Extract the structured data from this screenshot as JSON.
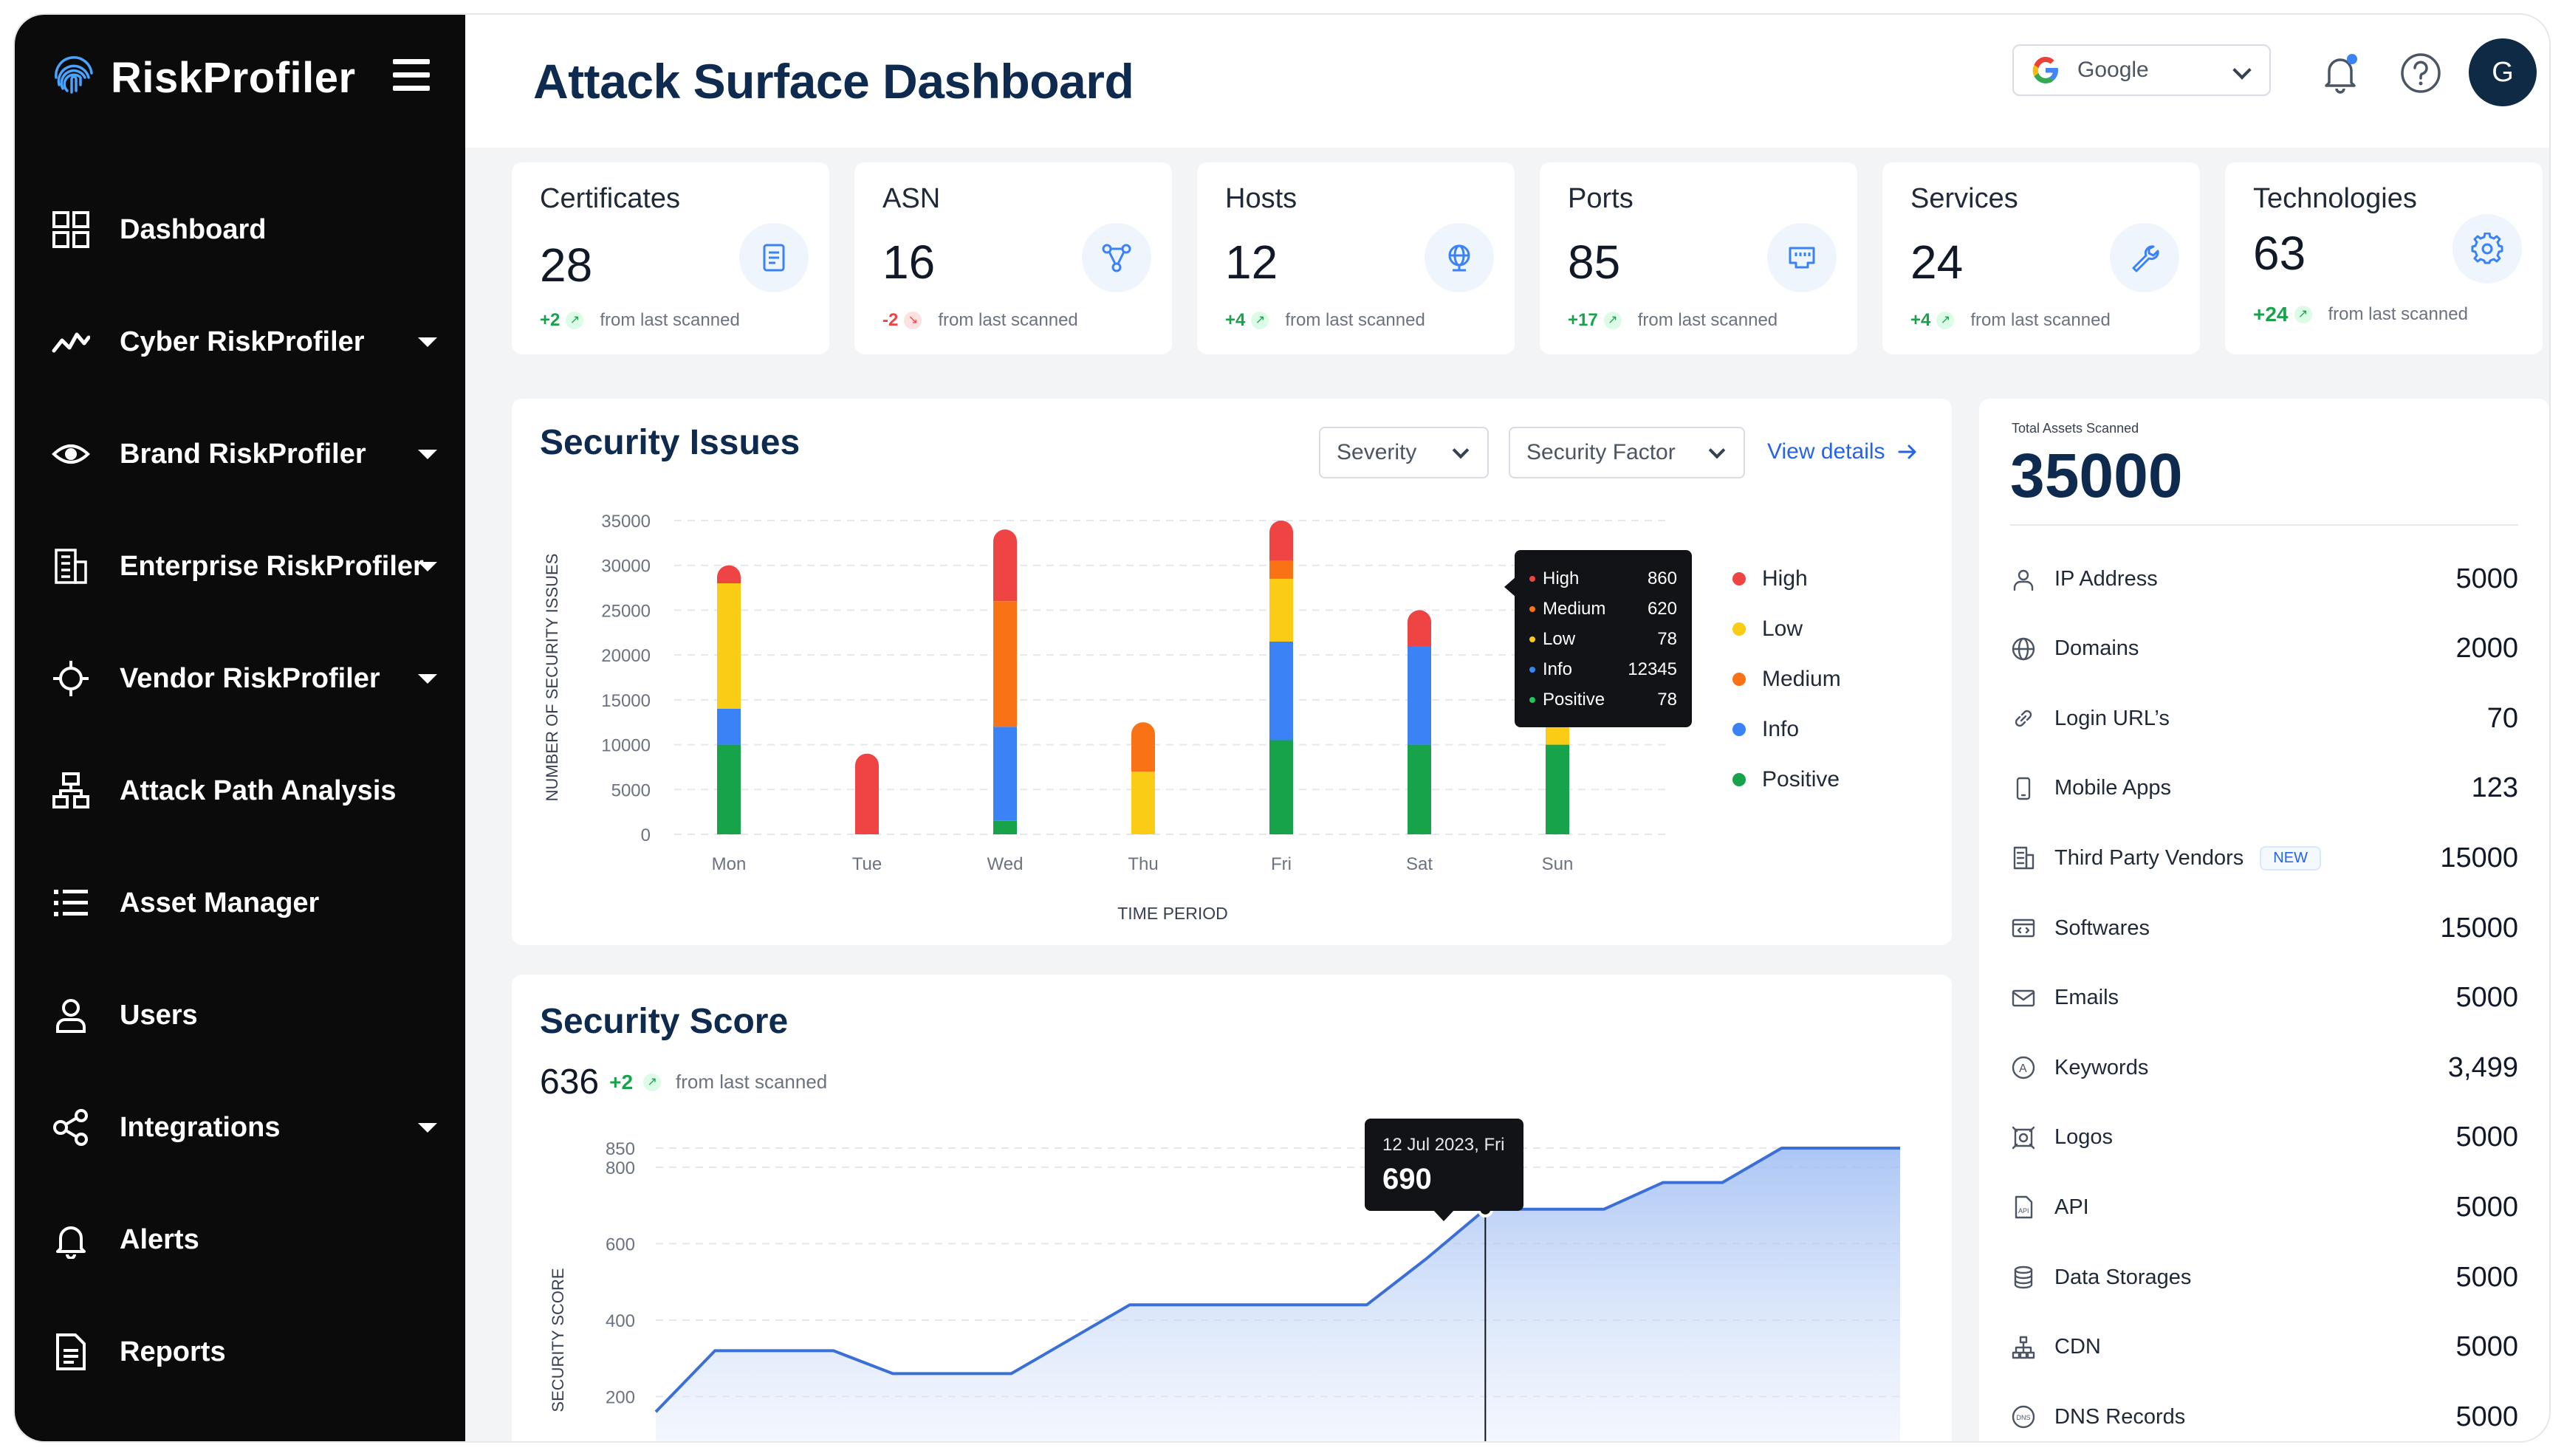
{
  "app": {
    "name": "RiskProfiler"
  },
  "sidebar": {
    "items": [
      {
        "label": "Dashboard",
        "icon": "grid-icon",
        "caret": false
      },
      {
        "label": "Cyber RiskProfiler",
        "icon": "pulse-icon",
        "caret": true
      },
      {
        "label": "Brand RiskProfiler",
        "icon": "eye-icon",
        "caret": true
      },
      {
        "label": "Enterprise RiskProfiler",
        "icon": "building-icon",
        "caret": true
      },
      {
        "label": "Vendor RiskProfiler",
        "icon": "crosshair-icon",
        "caret": true
      },
      {
        "label": "Attack Path Analysis",
        "icon": "hierarchy-icon",
        "caret": false
      },
      {
        "label": "Asset Manager",
        "icon": "list-icon",
        "caret": false
      },
      {
        "label": "Users",
        "icon": "user-icon",
        "caret": false
      },
      {
        "label": "Integrations",
        "icon": "integrations-icon",
        "caret": true
      },
      {
        "label": "Alerts",
        "icon": "bell-icon",
        "caret": false
      },
      {
        "label": "Reports",
        "icon": "document-icon",
        "caret": false
      }
    ]
  },
  "header": {
    "title": "Attack Surface Dashboard",
    "org_select": "Google",
    "avatar_initial": "G"
  },
  "stats": [
    {
      "title": "Certificates",
      "value": "28",
      "delta": "+2",
      "direction": "up",
      "suffix": "from last scanned",
      "icon": "certificate-icon"
    },
    {
      "title": "ASN",
      "value": "16",
      "delta": "-2",
      "direction": "down",
      "suffix": "from last scanned",
      "icon": "network-icon"
    },
    {
      "title": "Hosts",
      "value": "12",
      "delta": "+4",
      "direction": "up",
      "suffix": "from last scanned",
      "icon": "globe-icon"
    },
    {
      "title": "Ports",
      "value": "85",
      "delta": "+17",
      "direction": "up",
      "suffix": "from last scanned",
      "icon": "port-icon"
    },
    {
      "title": "Services",
      "value": "24",
      "delta": "+4",
      "direction": "up",
      "suffix": "from last scanned",
      "icon": "wrench-icon"
    },
    {
      "title": "Technologies",
      "value": "63",
      "delta": "+24",
      "direction": "up",
      "suffix": "from last scanned",
      "icon": "gear-icon"
    }
  ],
  "security_issues": {
    "title": "Security Issues",
    "filter_severity": "Severity",
    "filter_factor": "Security Factor",
    "view_details": "View details",
    "tooltip": [
      {
        "label": "High",
        "value": "860",
        "color": "#ef4444"
      },
      {
        "label": "Medium",
        "value": "620",
        "color": "#f97316"
      },
      {
        "label": "Low",
        "value": "78",
        "color": "#facc15"
      },
      {
        "label": "Info",
        "value": "12345",
        "color": "#3b82f6"
      },
      {
        "label": "Positive",
        "value": "78",
        "color": "#22c55e"
      }
    ],
    "legend": [
      {
        "label": "High",
        "color": "#ef4444"
      },
      {
        "label": "Low",
        "color": "#facc15"
      },
      {
        "label": "Medium",
        "color": "#f97316"
      },
      {
        "label": "Info",
        "color": "#3b82f6"
      },
      {
        "label": "Positive",
        "color": "#16a34a"
      }
    ]
  },
  "security_score": {
    "title": "Security Score",
    "score": "636",
    "delta": "+2",
    "suffix": "from last scanned",
    "tooltip_date": "12 Jul 2023, Fri",
    "tooltip_value": "690"
  },
  "assets": {
    "caption": "Total Assets Scanned",
    "total": "35000",
    "rows": [
      {
        "label": "IP Address",
        "value": "5000",
        "icon": "location-icon"
      },
      {
        "label": "Domains",
        "value": "2000",
        "icon": "globe-icon"
      },
      {
        "label": "Login URL’s",
        "value": "70",
        "icon": "link-icon"
      },
      {
        "label": "Mobile Apps",
        "value": "123",
        "icon": "phone-icon"
      },
      {
        "label": "Third Party Vendors",
        "value": "15000",
        "icon": "building-icon",
        "badge": "NEW"
      },
      {
        "label": "Softwares",
        "value": "15000",
        "icon": "software-icon"
      },
      {
        "label": "Emails",
        "value": "5000",
        "icon": "mail-icon"
      },
      {
        "label": "Keywords",
        "value": "3,499",
        "icon": "keyword-icon"
      },
      {
        "label": "Logos",
        "value": "5000",
        "icon": "logo-icon"
      },
      {
        "label": "API",
        "value": "5000",
        "icon": "api-icon"
      },
      {
        "label": "Data Storages",
        "value": "5000",
        "icon": "database-icon"
      },
      {
        "label": "CDN",
        "value": "5000",
        "icon": "cdn-icon"
      },
      {
        "label": "DNS Records",
        "value": "5000",
        "icon": "dns-icon"
      }
    ]
  },
  "chart_data": [
    {
      "type": "bar",
      "stacked": true,
      "title": "Security Issues",
      "xlabel": "TIME PERIOD",
      "ylabel": "NUMBER OF SECURITY ISSUES",
      "ylim": [
        0,
        35000
      ],
      "yticks": [
        0,
        5000,
        10000,
        15000,
        20000,
        25000,
        30000,
        35000
      ],
      "categories": [
        "Mon",
        "Tue",
        "Wed",
        "Thu",
        "Fri",
        "Sat",
        "Sun"
      ],
      "series": [
        {
          "name": "Positive",
          "color": "#16a34a",
          "values": [
            10000,
            0,
            1500,
            0,
            10500,
            10000,
            10000
          ]
        },
        {
          "name": "Info",
          "color": "#3b82f6",
          "values": [
            4000,
            0,
            10500,
            0,
            11000,
            11000,
            0
          ]
        },
        {
          "name": "Low",
          "color": "#facc15",
          "values": [
            14000,
            0,
            0,
            7000,
            7000,
            0,
            4000
          ]
        },
        {
          "name": "Medium",
          "color": "#f97316",
          "values": [
            0,
            0,
            14000,
            5500,
            2000,
            0,
            0
          ]
        },
        {
          "name": "High",
          "color": "#ef4444",
          "values": [
            2000,
            9000,
            8000,
            0,
            4500,
            4000,
            0
          ]
        }
      ],
      "legend_position": "right",
      "grid": true
    },
    {
      "type": "area",
      "title": "Security Score",
      "ylabel": "SECURITY SCORE",
      "ylim": [
        0,
        850
      ],
      "yticks": [
        0,
        200,
        400,
        600,
        800,
        850
      ],
      "x": [
        0,
        1,
        2,
        3,
        4,
        5,
        6,
        7,
        8,
        9,
        10,
        11,
        12,
        13,
        14,
        15,
        16,
        17,
        18,
        19,
        20,
        21
      ],
      "values": [
        160,
        320,
        320,
        320,
        260,
        260,
        260,
        350,
        440,
        440,
        440,
        440,
        440,
        560,
        690,
        690,
        690,
        760,
        760,
        850,
        850,
        850
      ],
      "color": "#3b6fd8",
      "grid": true
    }
  ]
}
